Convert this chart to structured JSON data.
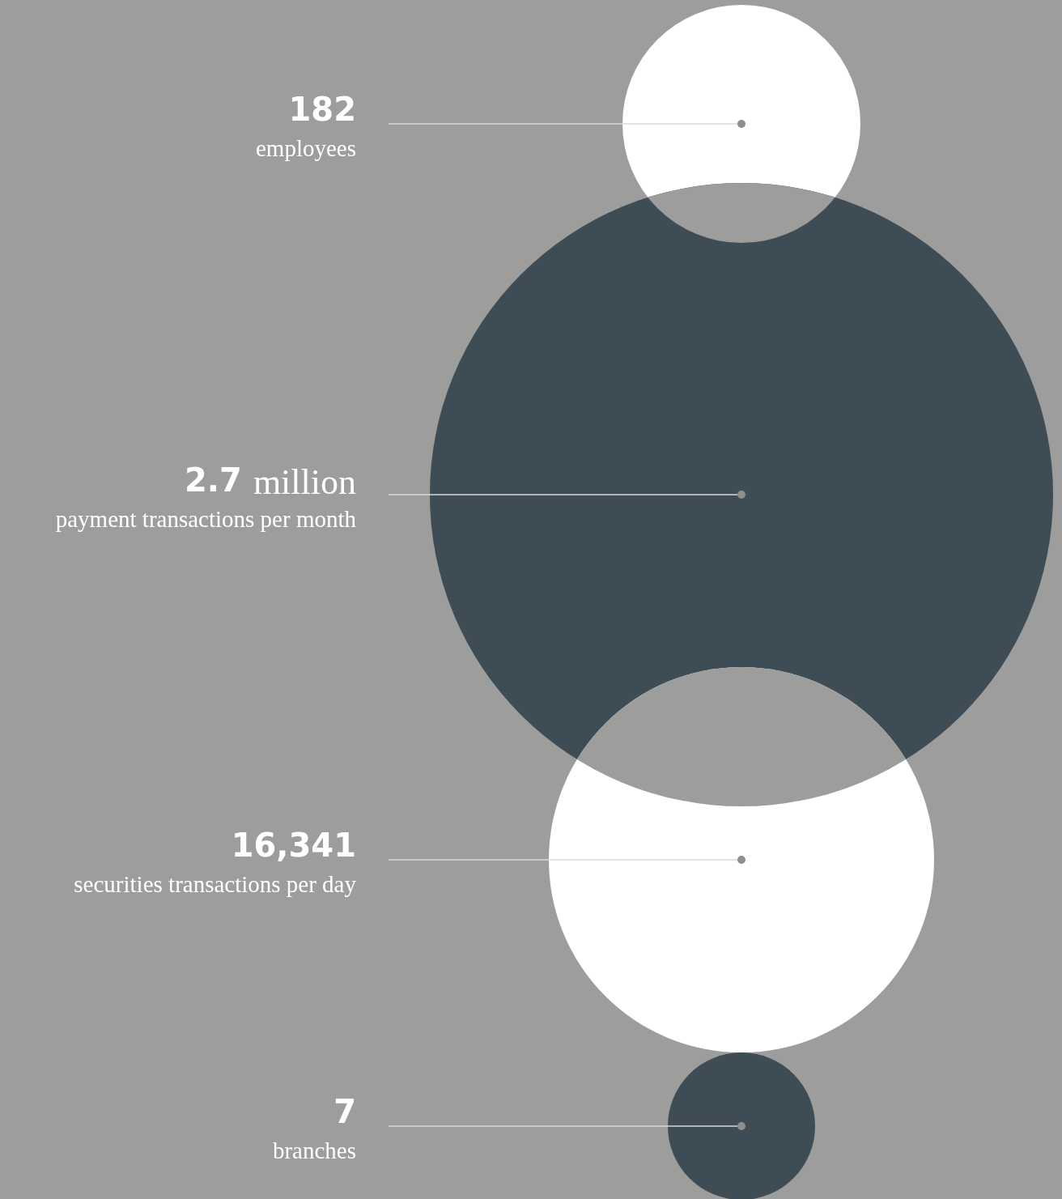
{
  "chart_data": {
    "type": "other",
    "categories": [
      "employees",
      "payment transactions per month",
      "securities transactions per day",
      "branches"
    ],
    "values": [
      182,
      2.7,
      16341,
      7
    ],
    "value_labels": [
      "182",
      "2.7",
      "16,341",
      "7"
    ],
    "colors": [
      "#ffffff",
      "#3e4d55",
      "#ffffff",
      "#3e4d55"
    ],
    "annotations": [
      {
        "text": "million",
        "x": "payment transactions per month"
      }
    ]
  }
}
